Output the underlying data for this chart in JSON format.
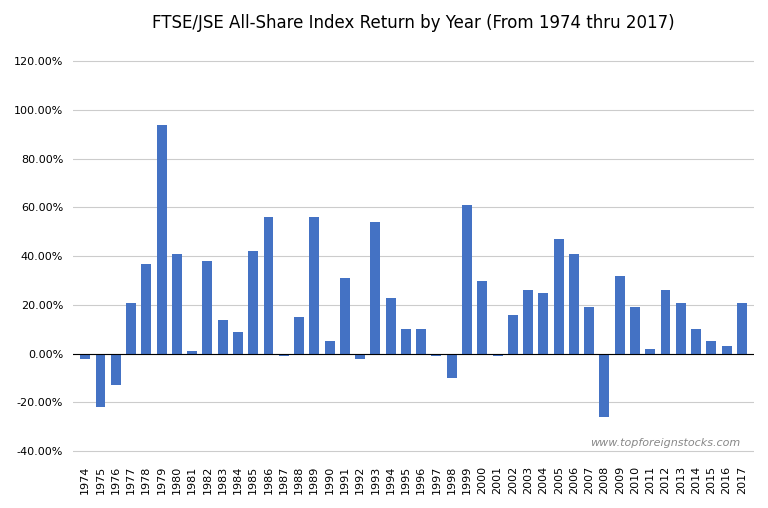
{
  "title": "FTSE/JSE All-Share Index Return by Year (From 1974 thru 2017)",
  "watermark": "www.topforeignstocks.com",
  "bar_color": "#4472C4",
  "background_color": "#FFFFFF",
  "years": [
    1974,
    1975,
    1976,
    1977,
    1978,
    1979,
    1980,
    1981,
    1982,
    1983,
    1984,
    1985,
    1986,
    1987,
    1988,
    1989,
    1990,
    1991,
    1992,
    1993,
    1994,
    1995,
    1996,
    1997,
    1998,
    1999,
    2000,
    2001,
    2002,
    2003,
    2004,
    2005,
    2006,
    2007,
    2008,
    2009,
    2010,
    2011,
    2012,
    2013,
    2014,
    2015,
    2016,
    2017
  ],
  "returns": [
    -0.02,
    -0.22,
    -0.13,
    0.21,
    0.37,
    0.94,
    0.41,
    0.01,
    0.38,
    0.14,
    0.09,
    0.42,
    0.56,
    -0.01,
    0.15,
    0.56,
    0.05,
    0.31,
    -0.02,
    0.54,
    0.23,
    0.1,
    0.1,
    -0.01,
    -0.1,
    0.61,
    0.3,
    -0.01,
    0.16,
    0.26,
    0.25,
    0.47,
    0.41,
    0.19,
    -0.26,
    0.32,
    0.19,
    0.02,
    0.26,
    0.21,
    0.1,
    0.05,
    0.03,
    0.21
  ],
  "ylim": [
    -0.42,
    1.28
  ],
  "yticks": [
    -0.4,
    -0.2,
    0.0,
    0.2,
    0.4,
    0.6,
    0.8,
    1.0,
    1.2
  ],
  "grid_color": "#CCCCCC",
  "title_fontsize": 12,
  "tick_fontsize": 8
}
